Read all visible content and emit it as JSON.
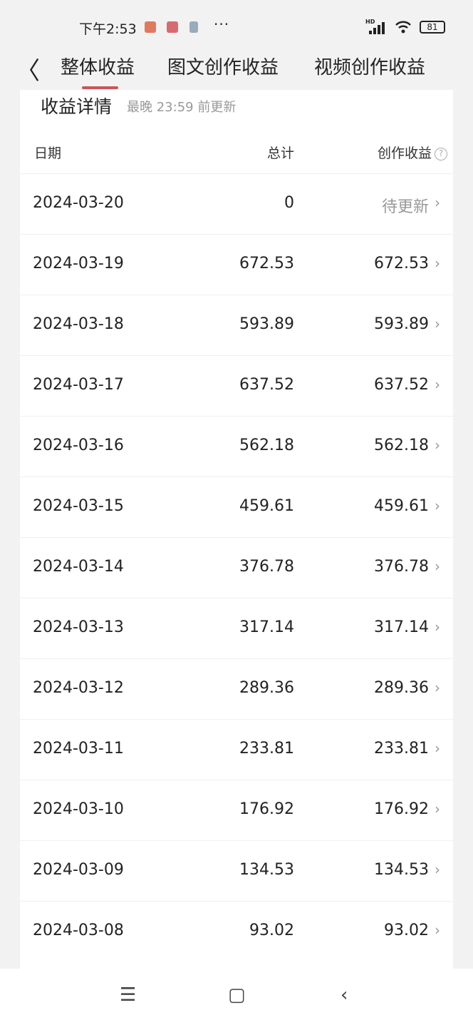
{
  "status_bar": {
    "time": "下午2:53",
    "signal": "HD",
    "battery": "81"
  },
  "header": {
    "tabs": [
      {
        "label": "整体收益",
        "active": true
      },
      {
        "label": "图文创作收益"
      },
      {
        "label": "视频创作收益"
      }
    ],
    "accent": "#c9565a"
  },
  "card": {
    "title": "收益详情",
    "subtitle": "最晚 23:59 前更新",
    "columns": [
      "日期",
      "总计",
      "创作收益"
    ],
    "rows": [
      {
        "date": "2024-03-20",
        "total": "0",
        "creation": "待更新"
      },
      {
        "date": "2024-03-19",
        "total": "672.53",
        "creation": "672.53"
      },
      {
        "date": "2024-03-18",
        "total": "593.89",
        "creation": "593.89"
      },
      {
        "date": "2024-03-17",
        "total": "637.52",
        "creation": "637.52"
      },
      {
        "date": "2024-03-16",
        "total": "562.18",
        "creation": "562.18"
      },
      {
        "date": "2024-03-15",
        "total": "459.61",
        "creation": "459.61"
      },
      {
        "date": "2024-03-14",
        "total": "376.78",
        "creation": "376.78"
      },
      {
        "date": "2024-03-13",
        "total": "317.14",
        "creation": "317.14"
      },
      {
        "date": "2024-03-12",
        "total": "289.36",
        "creation": "289.36"
      },
      {
        "date": "2024-03-11",
        "total": "233.81",
        "creation": "233.81"
      },
      {
        "date": "2024-03-10",
        "total": "176.92",
        "creation": "176.92"
      },
      {
        "date": "2024-03-09",
        "total": "134.53",
        "creation": "134.53"
      },
      {
        "date": "2024-03-08",
        "total": "93.02",
        "creation": "93.02"
      }
    ]
  }
}
